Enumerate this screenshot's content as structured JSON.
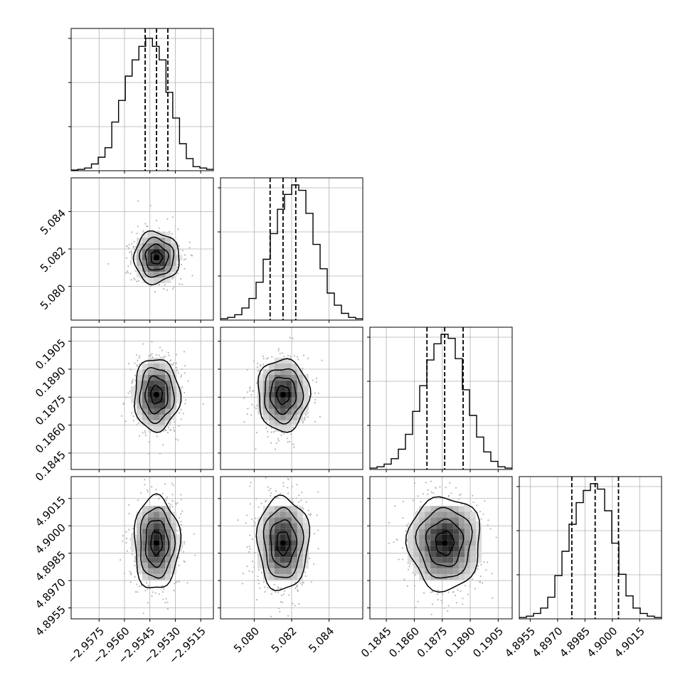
{
  "chart_data": {
    "type": "corner",
    "parameters": [
      {
        "ticks": [
          -2.9575,
          -2.956,
          -2.9545,
          -2.953,
          -2.9515
        ],
        "tick_labels": [
          "−2.9575",
          "−2.9560",
          "−2.9545",
          "−2.9530",
          "−2.9515"
        ],
        "range": [
          -2.95915,
          -2.95075
        ],
        "quantiles": [
          -2.95478,
          -2.95411,
          -2.95344
        ]
      },
      {
        "ticks": [
          5.08,
          5.082,
          5.084
        ],
        "tick_labels": [
          "5.080",
          "5.082",
          "5.084"
        ],
        "range": [
          5.0782,
          5.0858
        ],
        "quantiles": [
          5.08085,
          5.08154,
          5.08222
        ]
      },
      {
        "ticks": [
          0.1845,
          0.186,
          0.1875,
          0.189,
          0.1905
        ],
        "tick_labels": [
          "0.1845",
          "0.1860",
          "0.1875",
          "0.1890",
          "0.1905"
        ],
        "range": [
          0.18362,
          0.19125
        ],
        "quantiles": [
          0.18668,
          0.18763,
          0.18862
        ]
      },
      {
        "ticks": [
          4.8955,
          4.897,
          4.8985,
          4.9,
          4.9015
        ],
        "tick_labels": [
          "4.8955",
          "4.8970",
          "4.8985",
          "4.9000",
          "4.9015"
        ],
        "range": [
          4.8949,
          4.9027
        ],
        "quantiles": [
          4.89778,
          4.89906,
          4.90034
        ]
      }
    ],
    "histograms": [
      [
        0.005,
        0.01,
        0.02,
        0.05,
        0.1,
        0.17,
        0.36,
        0.52,
        0.7,
        0.82,
        0.92,
        0.98,
        0.92,
        0.82,
        0.58,
        0.39,
        0.2,
        0.09,
        0.03,
        0.02,
        0.01
      ],
      [
        0.01,
        0.02,
        0.04,
        0.09,
        0.16,
        0.28,
        0.45,
        0.64,
        0.82,
        0.93,
        1.0,
        0.96,
        0.79,
        0.56,
        0.38,
        0.2,
        0.11,
        0.05,
        0.02,
        0.01
      ],
      [
        0.01,
        0.02,
        0.04,
        0.08,
        0.15,
        0.26,
        0.43,
        0.62,
        0.81,
        0.93,
        1.0,
        0.97,
        0.82,
        0.59,
        0.4,
        0.24,
        0.13,
        0.06,
        0.02,
        0.01
      ],
      [
        0.01,
        0.02,
        0.04,
        0.08,
        0.16,
        0.32,
        0.5,
        0.7,
        0.86,
        0.95,
        1.0,
        0.96,
        0.8,
        0.56,
        0.33,
        0.17,
        0.08,
        0.04,
        0.02,
        0.01
      ]
    ],
    "grid": true,
    "contour_levels": 4
  }
}
